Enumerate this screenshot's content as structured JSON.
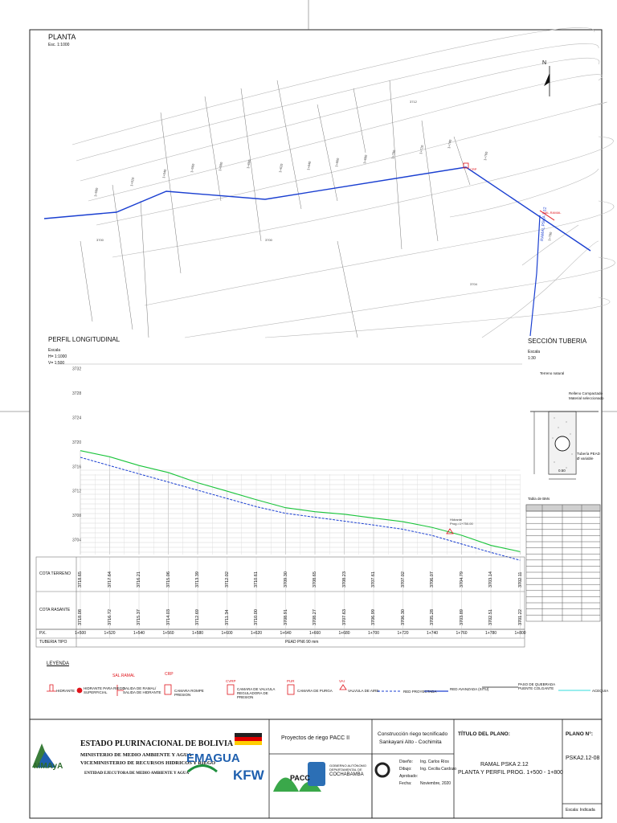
{
  "planta": {
    "title": "PLANTA",
    "scale": "Esc. 1:1000"
  },
  "perfil": {
    "title": "PERFIL LONGITUDINAL",
    "scale_label": "Escala",
    "scale_h": "H= 1:1000",
    "scale_v": "V= 1:500",
    "y_ticks": [
      "3732",
      "3728",
      "3724",
      "3720",
      "3716",
      "3712",
      "3708",
      "3704"
    ],
    "row_labels": {
      "terreno": "COTA TERRENO",
      "rasante": "COTA RASANTE",
      "pk": "P.K.",
      "tuberia": "TUBERIA TIPO"
    },
    "cota_terreno": [
      "3718.65",
      "3717.64",
      "3716.21",
      "3715.06",
      "3713.39",
      "3712.02",
      "3710.61",
      "3709.30",
      "3708.65",
      "3708.23",
      "3707.61",
      "3707.02",
      "3706.07",
      "3704.79",
      "3703.14",
      "3702.11"
    ],
    "cota_rasante": [
      "3718.08",
      "3716.72",
      "3715.37",
      "3714.03",
      "3712.69",
      "3711.34",
      "3710.00",
      "3708.91",
      "3708.27",
      "3707.63",
      "3706.99",
      "3706.30",
      "3705.28",
      "3703.89",
      "3702.51",
      "3701.22"
    ],
    "pk": [
      "1+500",
      "1+520",
      "1+540",
      "1+560",
      "1+580",
      "1+600",
      "1+620",
      "1+640",
      "1+660",
      "1+680",
      "1+700",
      "1+720",
      "1+740",
      "1+760",
      "1+780",
      "1+800"
    ],
    "tuberia": "PEAD PN6 90 mm"
  },
  "seccion": {
    "title": "SECCIÓN TUBERIA",
    "scale_label": "Escala",
    "scale": "1:30",
    "terreno": "Terreno natural",
    "relleno_1": "Relleno Compactado",
    "relleno_2": "Material seleccionado",
    "tuberia_1": "Tubería PEAD",
    "tuberia_2": "Ø variable",
    "ancho": "0.50",
    "tabla_title": "Tabla de BMs"
  },
  "leyenda": {
    "title": "LEYENDA",
    "items": [
      "HIDRANTE",
      "HIDRANTE PARA RIEGO SUPERFICIAL",
      "SALIDA DE RAMAL/ SALIDA DE HIDRANTE",
      "CAMARA ROMPE PRESION",
      "CAMARA DE VALVULA REGULADORA DE PRESION",
      "CAMARA DE PURGA",
      "VALVULA DE AIRE",
      "RED PROYECTADA",
      "RED AVANZADA (SITU)",
      "PASO DE QUEBRADA PUENTE COLGANTE",
      "ACEQUIA"
    ],
    "tags": {
      "sal_ramal": "SAL.RAMAL",
      "crp": "CRP",
      "cvrp": "CVRP",
      "pur": "PUR",
      "vai": "VAI"
    }
  },
  "title_block": {
    "org": "ESTADO PLURINACIONAL DE BOLIVIA",
    "ministerio": "MINISTERIO DE MEDIO AMBIENTE Y AGUA",
    "vice": "VICEMINISTERIO DE RECURSOS HIDRICOS Y RIEGO",
    "entidad": "ENTIDAD EJECUTORA DE MEDIO AMBIENTE Y AGUA",
    "mmaya": "MMAyA",
    "emagua": "EMAGUA",
    "kfw": "KFW",
    "pacc": "PACC",
    "gob_1": "GOBIERNO AUTÓNOMO",
    "gob_2": "DEPARTAMENTAL DE",
    "cochabamba": "COCHABAMBA",
    "programa": "Proyectos de riego PACC II",
    "project_1": "Construcción riego tecnificado",
    "project_2": "Sankayani Alto - Cochimita",
    "rows": [
      {
        "label": "Diseño:",
        "value": "Ing. Carlos Ríos"
      },
      {
        "label": "Dibujo:",
        "value": "Ing. Cecilia Cardozo"
      },
      {
        "label": "Aprobado:",
        "value": ""
      },
      {
        "label": "Fecha:",
        "value": "Noviembre, 2020"
      }
    ],
    "titulo_label": "TÍTULO DEL PLANO:",
    "titulo_1": "RAMAL PSKA 2.12",
    "titulo_2": "PLANTA Y PERFIL PROG. 1+500 - 1+800",
    "plano_label": "PLANO N°:",
    "plano_no": "PSKA2.12-08",
    "escala": "Escala: Indicada"
  },
  "colors": {
    "pipe": "#1a3fd1",
    "terrain": "#19c43a",
    "grid": "#9a9a9a",
    "red": "#e0141b",
    "cyan": "#33dcdc"
  }
}
